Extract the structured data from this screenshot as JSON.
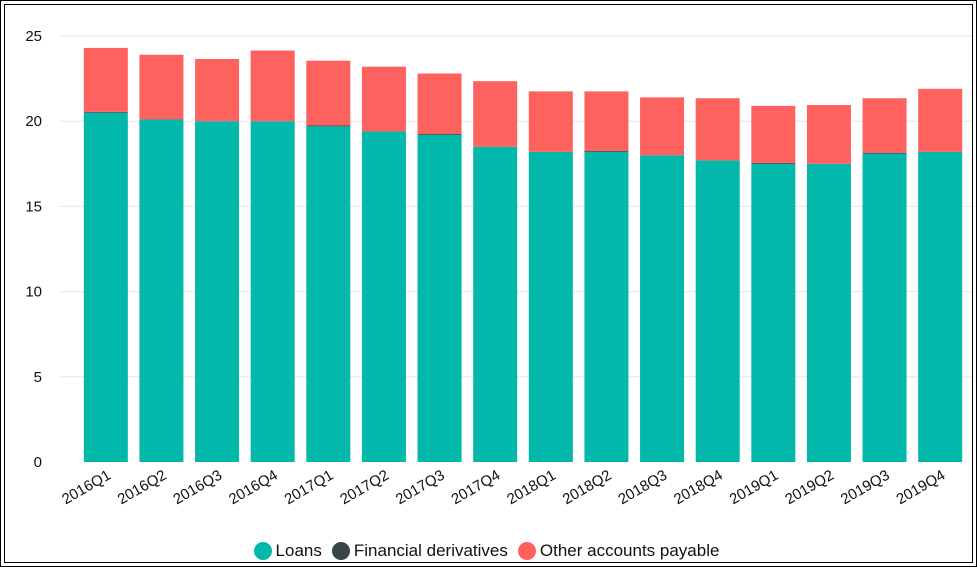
{
  "chart_data": {
    "type": "bar",
    "stacked": true,
    "categories": [
      "2016Q1",
      "2016Q2",
      "2016Q3",
      "2016Q4",
      "2017Q1",
      "2017Q2",
      "2017Q3",
      "2017Q4",
      "2018Q1",
      "2018Q2",
      "2018Q3",
      "2018Q4",
      "2019Q1",
      "2019Q2",
      "2019Q3",
      "2019Q4"
    ],
    "series": [
      {
        "name": "Loans",
        "color": "#01b8aa",
        "values": [
          20.5,
          20.1,
          20.0,
          20.0,
          19.7,
          19.4,
          19.2,
          18.5,
          18.2,
          18.2,
          18.0,
          17.7,
          17.5,
          17.5,
          18.1,
          18.2
        ]
      },
      {
        "name": "Financial derivatives",
        "color": "#374649",
        "values": [
          0.05,
          0.0,
          0.0,
          0.0,
          0.05,
          0.0,
          0.05,
          0.0,
          0.0,
          0.05,
          0.0,
          0.0,
          0.05,
          0.0,
          0.05,
          0.0
        ]
      },
      {
        "name": "Other accounts payable",
        "color": "#fd625e",
        "values": [
          3.75,
          3.8,
          3.65,
          4.15,
          3.8,
          3.8,
          3.55,
          3.85,
          3.55,
          3.5,
          3.4,
          3.65,
          3.35,
          3.45,
          3.2,
          3.7
        ]
      }
    ],
    "yticks": [
      0,
      5,
      10,
      15,
      20,
      25
    ],
    "ylim": [
      0,
      25
    ],
    "grid": true,
    "legend_position": "bottom",
    "title": "",
    "xlabel": "",
    "ylabel": ""
  }
}
